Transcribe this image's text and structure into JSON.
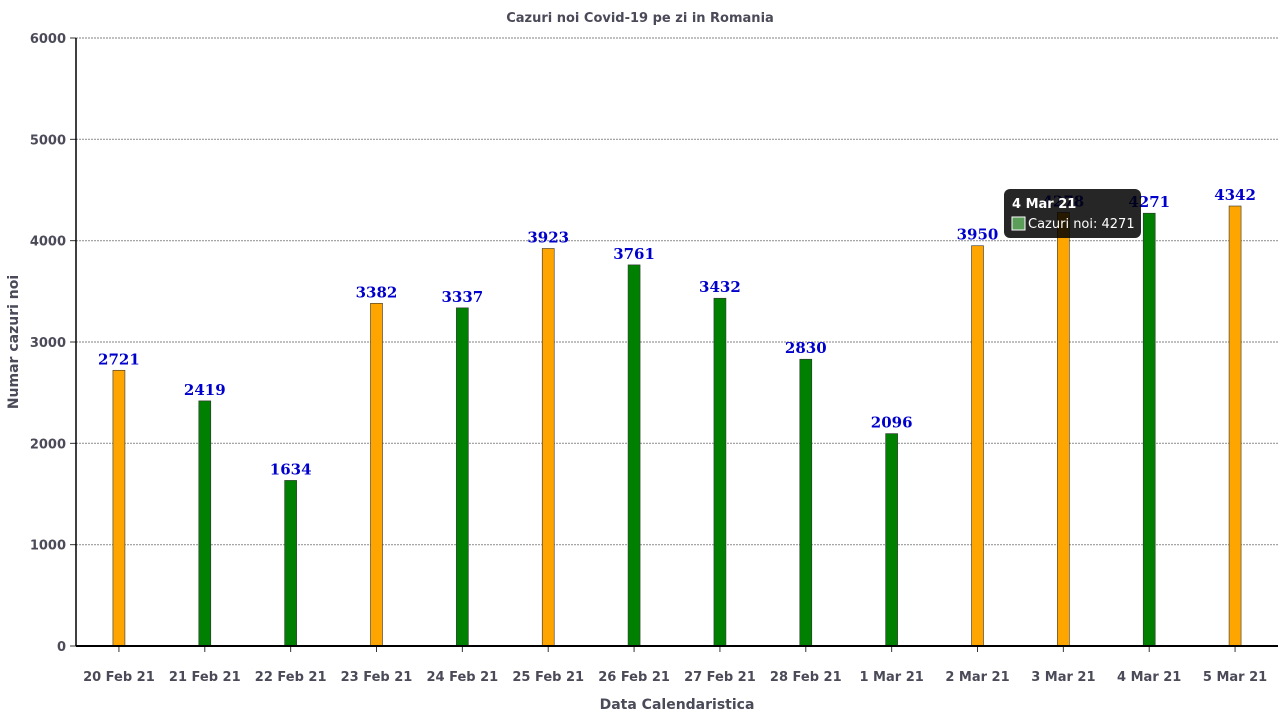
{
  "chart_data": {
    "type": "bar",
    "title": "Cazuri noi Covid-19 pe zi in Romania",
    "xlabel": "Data Calendaristica",
    "ylabel": "Numar cazuri noi",
    "ylim": [
      0,
      6000
    ],
    "yticks": [
      0,
      1000,
      2000,
      3000,
      4000,
      5000,
      6000
    ],
    "grid": true,
    "categories": [
      "20 Feb 21",
      "21 Feb 21",
      "22 Feb 21",
      "23 Feb 21",
      "24 Feb 21",
      "25 Feb 21",
      "26 Feb 21",
      "27 Feb 21",
      "28 Feb 21",
      "1 Mar 21",
      "2 Mar 21",
      "3 Mar 21",
      "4 Mar 21",
      "5 Mar 21"
    ],
    "values": [
      2721,
      2419,
      1634,
      3382,
      3337,
      3923,
      3761,
      3432,
      2830,
      2096,
      3950,
      4278,
      4271,
      4342
    ],
    "bar_colors": [
      "#FFA500",
      "#008000",
      "#008000",
      "#FFA500",
      "#008000",
      "#FFA500",
      "#008000",
      "#008000",
      "#008000",
      "#008000",
      "#FFA500",
      "#FFA500",
      "#008000",
      "#FFA500"
    ],
    "data_label_color": "#0000CC",
    "tooltip": {
      "title": "4 Mar 21",
      "text": "Cazuri noi: 4271",
      "swatch_color": "#5a9e5a"
    }
  }
}
